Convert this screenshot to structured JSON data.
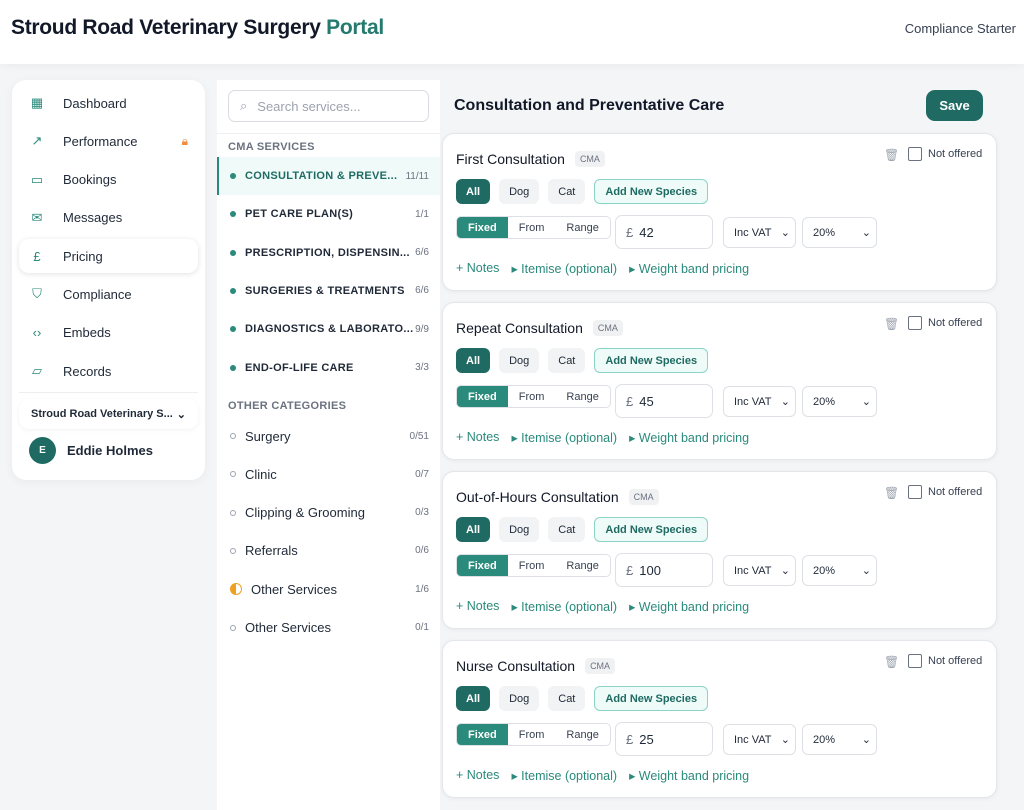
{
  "header": {
    "brand_main": "Stroud Road Veterinary Surgery",
    "brand_accent": "Portal",
    "plan": "Compliance Starter"
  },
  "sidebar": {
    "items": [
      {
        "label": "Dashboard",
        "icon": "grid-icon"
      },
      {
        "label": "Performance",
        "icon": "trend-icon",
        "locked": true
      },
      {
        "label": "Bookings",
        "icon": "chat-icon"
      },
      {
        "label": "Messages",
        "icon": "mail-icon"
      },
      {
        "label": "Pricing",
        "icon": "pound-icon",
        "active": true
      },
      {
        "label": "Compliance",
        "icon": "shield-icon"
      },
      {
        "label": "Embeds",
        "icon": "code-icon"
      },
      {
        "label": "Records",
        "icon": "folder-icon"
      }
    ],
    "practice": "Stroud Road Veterinary S...",
    "user": {
      "initial": "E",
      "name": "Eddie Holmes"
    }
  },
  "categories": {
    "search_placeholder": "Search services...",
    "cma_heading": "CMA SERVICES",
    "cma": [
      {
        "label": "CONSULTATION & PREVE...",
        "count": "11/11",
        "active": true
      },
      {
        "label": "PET CARE PLAN(S)",
        "count": "1/1"
      },
      {
        "label": "PRESCRIPTION, DISPENSIN...",
        "count": "6/6"
      },
      {
        "label": "SURGERIES & TREATMENTS",
        "count": "6/6"
      },
      {
        "label": "DIAGNOSTICS & LABORATO...",
        "count": "9/9"
      },
      {
        "label": "END-OF-LIFE CARE",
        "count": "3/3"
      }
    ],
    "other_heading": "OTHER CATEGORIES",
    "other": [
      {
        "label": "Surgery",
        "count": "0/51",
        "status": "empty"
      },
      {
        "label": "Clinic",
        "count": "0/7",
        "status": "empty"
      },
      {
        "label": "Clipping & Grooming",
        "count": "0/3",
        "status": "empty"
      },
      {
        "label": "Referrals",
        "count": "0/6",
        "status": "empty"
      },
      {
        "label": "Other Services",
        "count": "1/6",
        "status": "partial"
      },
      {
        "label": "Other Services",
        "count": "0/1",
        "status": "empty"
      }
    ]
  },
  "main": {
    "title": "Consultation and Preventative Care",
    "save": "Save",
    "labels": {
      "badge": "CMA",
      "not_offered": "Not offered",
      "species": [
        "All",
        "Dog",
        "Cat"
      ],
      "add_species": "Add New Species",
      "modes": [
        "Fixed",
        "From",
        "Range"
      ],
      "currency": "£",
      "notes": "+ Notes",
      "itemise": "▸ Itemise (optional)",
      "weight": "▸ Weight band pricing"
    },
    "services": [
      {
        "name": "First Consultation",
        "price": "42",
        "vat": "Inc VAT",
        "rate": "20%"
      },
      {
        "name": "Repeat Consultation",
        "price": "45",
        "vat": "Inc VAT",
        "rate": "20%"
      },
      {
        "name": "Out-of-Hours Consultation",
        "price": "100",
        "vat": "Inc VAT",
        "rate": "20%"
      },
      {
        "name": "Nurse Consultation",
        "price": "25",
        "vat": "Inc VAT",
        "rate": "20%"
      }
    ]
  },
  "colors": {
    "accent": "#1f6b63",
    "accent_light": "#2a8a7b",
    "warning": "#f0a020"
  }
}
